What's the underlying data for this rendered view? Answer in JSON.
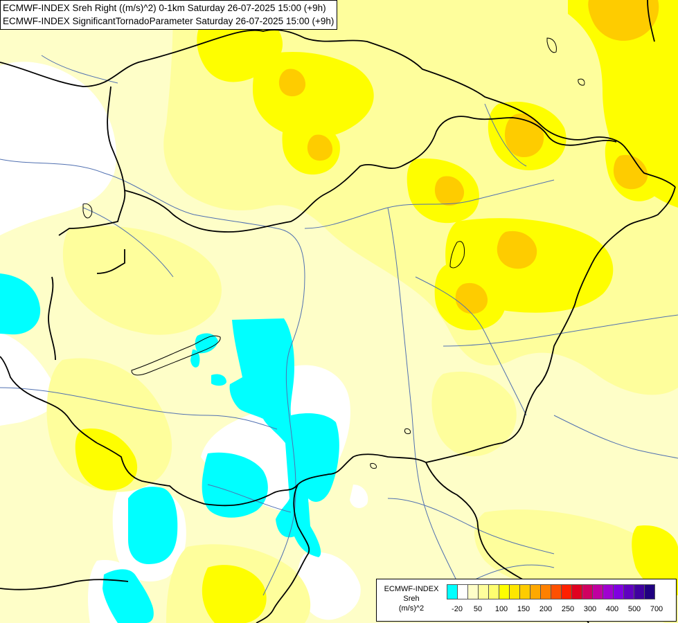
{
  "header": {
    "line1": "ECMWF-INDEX Sreh Right ((m/s)^2) 0-1km Saturday 26-07-2025 15:00 (+9h)",
    "line2": "ECMWF-INDEX SignificantTornadoParameter Saturday 26-07-2025 15:00 (+9h)"
  },
  "legend": {
    "title": [
      "ECMWF-INDEX",
      "Sreh",
      "(m/s)^2"
    ],
    "colors": [
      "#00ffff",
      "#ffffff",
      "#fefec8",
      "#fefe9c",
      "#fefe70",
      "#fefe00",
      "#fee600",
      "#fecc00",
      "#fea800",
      "#fe8000",
      "#fe5000",
      "#fe2000",
      "#e00020",
      "#d00060",
      "#c000a0",
      "#a000d0",
      "#8000e0",
      "#6000c0",
      "#4000a0",
      "#200080"
    ],
    "ticks": [
      "-20",
      "50",
      "100",
      "150",
      "200",
      "250",
      "300",
      "400",
      "500",
      "700"
    ]
  },
  "map": {
    "regions": [
      "blue field",
      "white field",
      "light yellow field",
      "yellow field",
      "orange field"
    ]
  }
}
